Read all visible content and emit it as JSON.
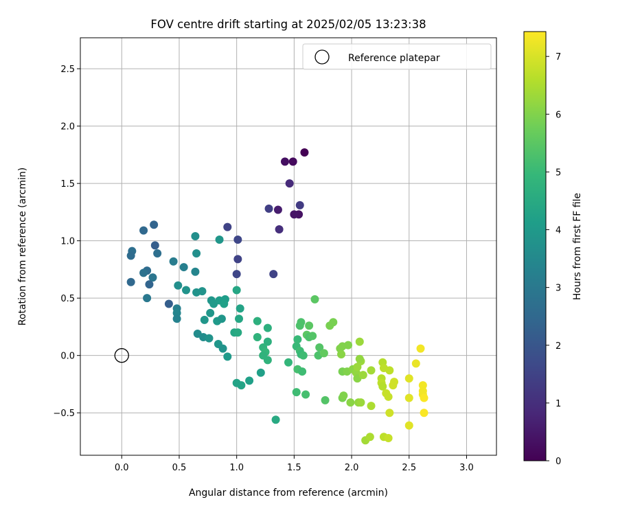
{
  "chart_data": {
    "type": "scatter",
    "title": "FOV centre drift starting at 2025/02/05 13:23:38",
    "xlabel": "Angular distance from reference (arcmin)",
    "ylabel": "Rotation from reference (arcmin)",
    "xlim": [
      -0.36,
      3.26
    ],
    "ylim": [
      -0.87,
      2.77
    ],
    "xticks": [
      0.0,
      0.5,
      1.0,
      1.5,
      2.0,
      2.5,
      3.0
    ],
    "xtick_labels": [
      "0.0",
      "0.5",
      "1.0",
      "1.5",
      "2.0",
      "2.5",
      "3.0"
    ],
    "yticks": [
      -0.5,
      0.0,
      0.5,
      1.0,
      1.5,
      2.0,
      2.5
    ],
    "ytick_labels": [
      "−0.5",
      "0.0",
      "0.5",
      "1.0",
      "1.5",
      "2.0",
      "2.5"
    ],
    "grid": true,
    "legend": {
      "position": "top-right",
      "entries": [
        "Reference platepar"
      ]
    },
    "reference_point": {
      "x": 0.0,
      "y": 0.0,
      "marker": "open-circle"
    },
    "colorbar": {
      "label": "Hours from first FF file",
      "range": [
        0,
        7.43
      ],
      "ticks": [
        0,
        1,
        2,
        3,
        4,
        5,
        6,
        7
      ],
      "tick_labels": [
        "0",
        "1",
        "2",
        "3",
        "4",
        "5",
        "6",
        "7"
      ],
      "colormap": "viridis"
    },
    "colormap_stops": [
      "#440154",
      "#482878",
      "#3e4989",
      "#31688e",
      "#26828e",
      "#1f9e89",
      "#35b779",
      "#6ece58",
      "#b5de2b",
      "#fde725"
    ],
    "points": [
      {
        "x": 1.59,
        "y": 1.77,
        "c": 0.0
      },
      {
        "x": 1.49,
        "y": 1.69,
        "c": 0.2
      },
      {
        "x": 1.42,
        "y": 1.69,
        "c": 0.3
      },
      {
        "x": 1.54,
        "y": 1.23,
        "c": 0.35
      },
      {
        "x": 1.5,
        "y": 1.23,
        "c": 0.4
      },
      {
        "x": 1.36,
        "y": 1.27,
        "c": 0.6
      },
      {
        "x": 1.46,
        "y": 1.5,
        "c": 0.9
      },
      {
        "x": 1.37,
        "y": 1.1,
        "c": 1.0
      },
      {
        "x": 1.55,
        "y": 1.31,
        "c": 1.3
      },
      {
        "x": 1.28,
        "y": 1.28,
        "c": 1.4
      },
      {
        "x": 1.32,
        "y": 0.71,
        "c": 1.5
      },
      {
        "x": 0.92,
        "y": 1.12,
        "c": 1.5
      },
      {
        "x": 1.01,
        "y": 1.01,
        "c": 1.6
      },
      {
        "x": 1.01,
        "y": 0.84,
        "c": 1.5
      },
      {
        "x": 1.0,
        "y": 0.71,
        "c": 1.6
      },
      {
        "x": 0.28,
        "y": 1.14,
        "c": 2.4
      },
      {
        "x": 0.19,
        "y": 1.09,
        "c": 2.5
      },
      {
        "x": 0.29,
        "y": 0.96,
        "c": 2.2
      },
      {
        "x": 0.09,
        "y": 0.91,
        "c": 2.7
      },
      {
        "x": 0.08,
        "y": 0.87,
        "c": 2.6
      },
      {
        "x": 0.31,
        "y": 0.89,
        "c": 2.7
      },
      {
        "x": 0.22,
        "y": 0.74,
        "c": 2.6
      },
      {
        "x": 0.19,
        "y": 0.72,
        "c": 2.8
      },
      {
        "x": 0.27,
        "y": 0.68,
        "c": 2.9
      },
      {
        "x": 0.08,
        "y": 0.64,
        "c": 2.5
      },
      {
        "x": 0.24,
        "y": 0.62,
        "c": 2.4
      },
      {
        "x": 0.22,
        "y": 0.5,
        "c": 3.0
      },
      {
        "x": 0.41,
        "y": 0.45,
        "c": 2.2
      },
      {
        "x": 0.45,
        "y": 0.82,
        "c": 3.1
      },
      {
        "x": 0.54,
        "y": 0.77,
        "c": 3.2
      },
      {
        "x": 0.48,
        "y": 0.41,
        "c": 3.2
      },
      {
        "x": 0.48,
        "y": 0.37,
        "c": 3.4
      },
      {
        "x": 0.48,
        "y": 0.32,
        "c": 3.3
      },
      {
        "x": 0.64,
        "y": 0.73,
        "c": 3.4
      },
      {
        "x": 0.64,
        "y": 1.04,
        "c": 3.7
      },
      {
        "x": 0.65,
        "y": 0.89,
        "c": 3.7
      },
      {
        "x": 0.49,
        "y": 0.61,
        "c": 3.7
      },
      {
        "x": 0.56,
        "y": 0.57,
        "c": 3.8
      },
      {
        "x": 0.65,
        "y": 0.55,
        "c": 3.8
      },
      {
        "x": 0.7,
        "y": 0.56,
        "c": 3.8
      },
      {
        "x": 0.85,
        "y": 1.01,
        "c": 3.9
      },
      {
        "x": 0.78,
        "y": 0.48,
        "c": 3.9
      },
      {
        "x": 0.8,
        "y": 0.45,
        "c": 4.0
      },
      {
        "x": 0.85,
        "y": 0.48,
        "c": 4.1
      },
      {
        "x": 0.9,
        "y": 0.49,
        "c": 4.1
      },
      {
        "x": 0.89,
        "y": 0.45,
        "c": 4.2
      },
      {
        "x": 0.77,
        "y": 0.37,
        "c": 3.9
      },
      {
        "x": 0.72,
        "y": 0.31,
        "c": 3.9
      },
      {
        "x": 0.83,
        "y": 0.3,
        "c": 4.0
      },
      {
        "x": 0.87,
        "y": 0.32,
        "c": 3.9
      },
      {
        "x": 0.66,
        "y": 0.19,
        "c": 3.6
      },
      {
        "x": 0.71,
        "y": 0.16,
        "c": 3.6
      },
      {
        "x": 0.76,
        "y": 0.15,
        "c": 3.8
      },
      {
        "x": 0.84,
        "y": 0.1,
        "c": 3.9
      },
      {
        "x": 0.88,
        "y": 0.06,
        "c": 3.8
      },
      {
        "x": 0.92,
        "y": -0.01,
        "c": 4.0
      },
      {
        "x": 1.0,
        "y": 0.57,
        "c": 4.4
      },
      {
        "x": 1.03,
        "y": 0.41,
        "c": 4.3
      },
      {
        "x": 1.02,
        "y": 0.32,
        "c": 4.4
      },
      {
        "x": 0.98,
        "y": 0.2,
        "c": 4.4
      },
      {
        "x": 1.01,
        "y": 0.2,
        "c": 4.5
      },
      {
        "x": 1.0,
        "y": -0.24,
        "c": 4.3
      },
      {
        "x": 1.04,
        "y": -0.26,
        "c": 4.3
      },
      {
        "x": 1.11,
        "y": -0.22,
        "c": 4.2
      },
      {
        "x": 1.21,
        "y": -0.15,
        "c": 4.2
      },
      {
        "x": 1.34,
        "y": -0.56,
        "c": 4.5
      },
      {
        "x": 1.18,
        "y": 0.3,
        "c": 4.7
      },
      {
        "x": 1.27,
        "y": 0.24,
        "c": 4.7
      },
      {
        "x": 1.18,
        "y": 0.16,
        "c": 4.8
      },
      {
        "x": 1.27,
        "y": 0.12,
        "c": 4.7
      },
      {
        "x": 1.23,
        "y": 0.07,
        "c": 4.8
      },
      {
        "x": 1.25,
        "y": 0.03,
        "c": 4.9
      },
      {
        "x": 1.23,
        "y": 0.0,
        "c": 4.8
      },
      {
        "x": 1.27,
        "y": -0.04,
        "c": 4.8
      },
      {
        "x": 1.45,
        "y": -0.06,
        "c": 4.9
      },
      {
        "x": 1.53,
        "y": 0.14,
        "c": 5.0
      },
      {
        "x": 1.52,
        "y": 0.08,
        "c": 5.0
      },
      {
        "x": 1.55,
        "y": 0.04,
        "c": 5.1
      },
      {
        "x": 1.56,
        "y": 0.01,
        "c": 5.0
      },
      {
        "x": 1.58,
        "y": 0.0,
        "c": 5.1
      },
      {
        "x": 1.53,
        "y": -0.12,
        "c": 5.2
      },
      {
        "x": 1.57,
        "y": -0.14,
        "c": 5.1
      },
      {
        "x": 1.52,
        "y": -0.32,
        "c": 5.1
      },
      {
        "x": 1.6,
        "y": -0.34,
        "c": 5.2
      },
      {
        "x": 1.56,
        "y": 0.29,
        "c": 5.3
      },
      {
        "x": 1.55,
        "y": 0.26,
        "c": 5.3
      },
      {
        "x": 1.63,
        "y": 0.26,
        "c": 5.5
      },
      {
        "x": 1.61,
        "y": 0.18,
        "c": 5.5
      },
      {
        "x": 1.63,
        "y": 0.16,
        "c": 5.3
      },
      {
        "x": 1.66,
        "y": 0.17,
        "c": 5.4
      },
      {
        "x": 1.68,
        "y": 0.49,
        "c": 5.5
      },
      {
        "x": 1.72,
        "y": 0.07,
        "c": 5.4
      },
      {
        "x": 1.71,
        "y": 0.0,
        "c": 5.3
      },
      {
        "x": 1.76,
        "y": 0.02,
        "c": 5.6
      },
      {
        "x": 1.77,
        "y": -0.39,
        "c": 5.4
      },
      {
        "x": 1.81,
        "y": 0.26,
        "c": 5.9
      },
      {
        "x": 1.84,
        "y": 0.29,
        "c": 5.9
      },
      {
        "x": 1.9,
        "y": 0.06,
        "c": 6.0
      },
      {
        "x": 1.91,
        "y": 0.01,
        "c": 6.1
      },
      {
        "x": 1.92,
        "y": 0.08,
        "c": 6.0
      },
      {
        "x": 1.97,
        "y": 0.09,
        "c": 6.0
      },
      {
        "x": 2.07,
        "y": 0.12,
        "c": 6.3
      },
      {
        "x": 1.92,
        "y": -0.14,
        "c": 5.9
      },
      {
        "x": 1.96,
        "y": -0.14,
        "c": 6.0
      },
      {
        "x": 2.01,
        "y": -0.12,
        "c": 6.1
      },
      {
        "x": 2.04,
        "y": -0.15,
        "c": 6.2
      },
      {
        "x": 2.05,
        "y": -0.2,
        "c": 6.1
      },
      {
        "x": 2.05,
        "y": -0.1,
        "c": 6.3
      },
      {
        "x": 2.08,
        "y": -0.05,
        "c": 6.3
      },
      {
        "x": 2.07,
        "y": -0.03,
        "c": 6.2
      },
      {
        "x": 2.1,
        "y": -0.17,
        "c": 6.3
      },
      {
        "x": 2.17,
        "y": -0.13,
        "c": 6.4
      },
      {
        "x": 1.92,
        "y": -0.37,
        "c": 5.9
      },
      {
        "x": 1.93,
        "y": -0.35,
        "c": 6.0
      },
      {
        "x": 1.99,
        "y": -0.41,
        "c": 6.1
      },
      {
        "x": 2.06,
        "y": -0.41,
        "c": 6.2
      },
      {
        "x": 2.08,
        "y": -0.41,
        "c": 6.3
      },
      {
        "x": 2.17,
        "y": -0.44,
        "c": 6.5
      },
      {
        "x": 2.12,
        "y": -0.74,
        "c": 6.4
      },
      {
        "x": 2.16,
        "y": -0.71,
        "c": 6.5
      },
      {
        "x": 2.27,
        "y": -0.06,
        "c": 6.6
      },
      {
        "x": 2.28,
        "y": -0.11,
        "c": 6.7
      },
      {
        "x": 2.33,
        "y": -0.13,
        "c": 6.7
      },
      {
        "x": 2.26,
        "y": -0.2,
        "c": 6.6
      },
      {
        "x": 2.26,
        "y": -0.24,
        "c": 6.7
      },
      {
        "x": 2.27,
        "y": -0.27,
        "c": 6.6
      },
      {
        "x": 2.3,
        "y": -0.33,
        "c": 6.8
      },
      {
        "x": 2.32,
        "y": -0.36,
        "c": 6.8
      },
      {
        "x": 2.33,
        "y": -0.5,
        "c": 6.9
      },
      {
        "x": 2.28,
        "y": -0.71,
        "c": 6.7
      },
      {
        "x": 2.32,
        "y": -0.72,
        "c": 6.8
      },
      {
        "x": 2.37,
        "y": -0.23,
        "c": 6.9
      },
      {
        "x": 2.36,
        "y": -0.26,
        "c": 6.9
      },
      {
        "x": 2.5,
        "y": -0.2,
        "c": 7.1
      },
      {
        "x": 2.5,
        "y": -0.37,
        "c": 7.1
      },
      {
        "x": 2.5,
        "y": -0.61,
        "c": 7.1
      },
      {
        "x": 2.56,
        "y": -0.07,
        "c": 7.2
      },
      {
        "x": 2.6,
        "y": 0.06,
        "c": 7.3
      },
      {
        "x": 2.62,
        "y": -0.26,
        "c": 7.3
      },
      {
        "x": 2.62,
        "y": -0.31,
        "c": 7.3
      },
      {
        "x": 2.62,
        "y": -0.34,
        "c": 7.3
      },
      {
        "x": 2.63,
        "y": -0.37,
        "c": 7.4
      },
      {
        "x": 2.63,
        "y": -0.5,
        "c": 7.4
      }
    ]
  }
}
